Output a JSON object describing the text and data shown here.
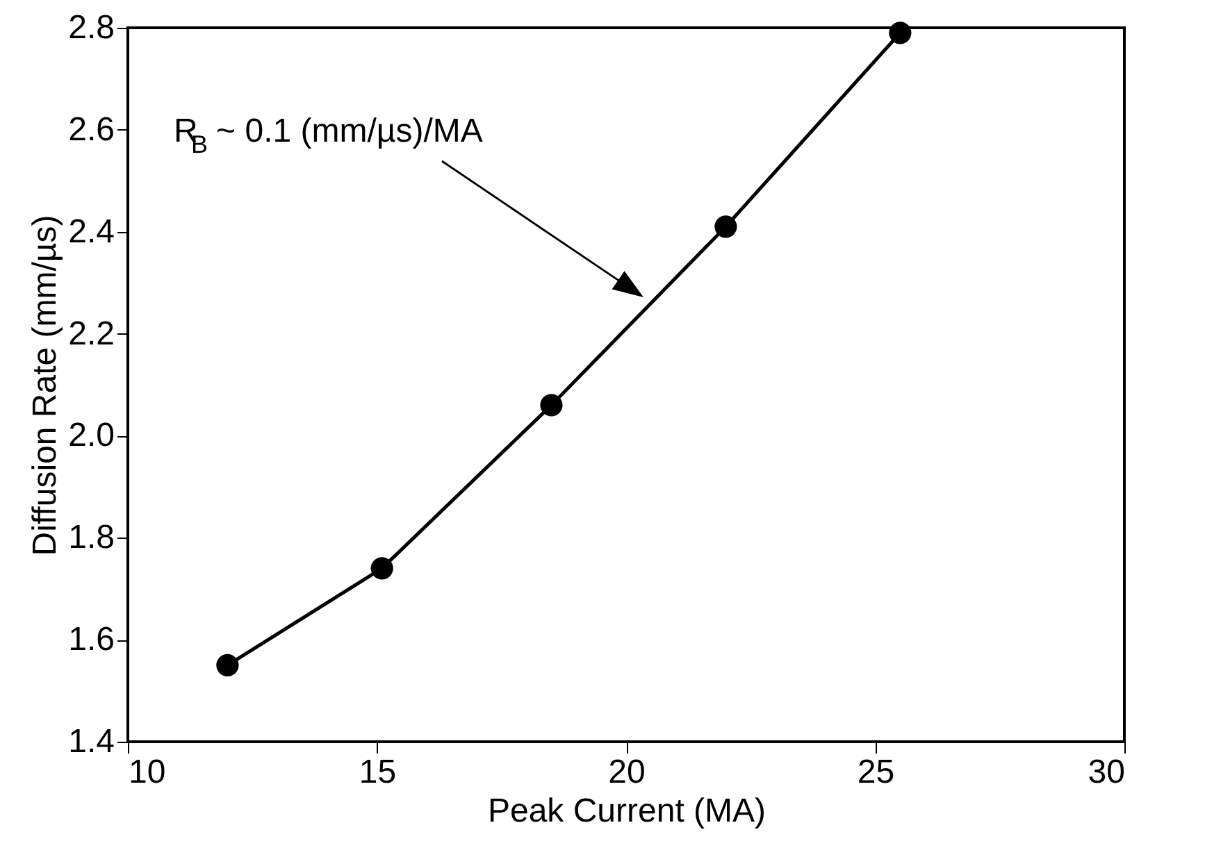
{
  "chart_data": {
    "type": "line",
    "xlabel": "Peak Current  (MA)",
    "ylabel": "Diffusion Rate  (mm/µs)",
    "x": [
      12,
      15.1,
      18.5,
      22,
      25.5
    ],
    "series": [
      {
        "color": "#000000",
        "values": [
          1.55,
          1.74,
          2.06,
          2.41,
          2.79
        ]
      }
    ],
    "marker": "circle",
    "line_style": "solid",
    "grid": false,
    "xlim": [
      10,
      30
    ],
    "xticks": [
      10,
      15,
      20,
      25,
      30
    ],
    "ylim": [
      1.4,
      2.8
    ],
    "yticks": [
      1.4,
      1.6,
      1.8,
      {
        "value": 2,
        "label": "2.0"
      },
      2.2,
      2.4,
      2.6,
      2.8
    ],
    "annotations": [
      "R$_{B}$ ~ 0.1 (mm/µs)/MA"
    ]
  }
}
